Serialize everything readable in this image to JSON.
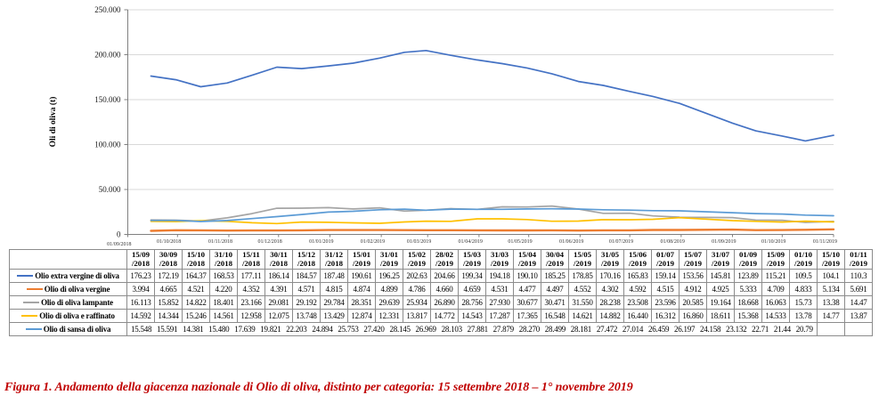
{
  "caption": {
    "text": "Figura 1. Andamento della giacenza nazionale di Olio di oliva, distinto per categoria: 15 settembre 2018 – 1° novembre 2019",
    "color": "#C00000"
  },
  "chart_data": {
    "type": "line",
    "title": "",
    "xlabel": "",
    "ylabel": "Oli di oliva (t)",
    "ylim": [
      0,
      250000
    ],
    "value_scale": 1000,
    "grid": true,
    "legend_position": "table-row-labels",
    "y_ticks": [
      "0",
      "50.000",
      "100.000",
      "150.000",
      "200.000",
      "250.000"
    ],
    "x_range": [
      "01/09/2018",
      "01/11/2019"
    ],
    "x_axis_labels": [
      "01/09/2018",
      "01/10/2018",
      "01/11/2018",
      "01/12/2018",
      "01/01/2019",
      "01/02/2019",
      "01/03/2019",
      "01/04/2019",
      "01/05/2019",
      "01/06/2019",
      "01/07/2019",
      "01/08/2019",
      "01/09/2019",
      "01/10/2019",
      "01/11/2019"
    ],
    "categories": [
      "15/09/2018",
      "30/09/2018",
      "15/10/2018",
      "31/10/2018",
      "15/11/2018",
      "30/11/2018",
      "15/12/2018",
      "31/12/2018",
      "15/01/2019",
      "31/01/2019",
      "15/02/2019",
      "28/02/2019",
      "15/03/2019",
      "31/03/2019",
      "15/04/2019",
      "30/04/2019",
      "15/05/2019",
      "31/05/2019",
      "15/06/2019",
      "01/07/2019",
      "15/07/2019",
      "31/07/2019",
      "01/09/2019",
      "15/09/2019",
      "01/10/2019",
      "15/10/2019",
      "01/11/2019"
    ],
    "series": [
      {
        "name": "Olio extra vergine di oliva",
        "color": "#4472C4",
        "values": [
          "176.23",
          "172.19",
          "164.37",
          "168.53",
          "177.11",
          "186.14",
          "184.57",
          "187.48",
          "190.61",
          "196.25",
          "202.63",
          "204.66",
          "199.34",
          "194.18",
          "190.10",
          "185.25",
          "178.85",
          "170.16",
          "165.83",
          "159.14",
          "153.56",
          "145.81",
          "123.89",
          "115.21",
          "109.5",
          "104.1",
          "110.3"
        ]
      },
      {
        "name": "Olio di oliva vergine",
        "color": "#ED7D31",
        "values": [
          "3.994",
          "4.665",
          "4.521",
          "4.220",
          "4.352",
          "4.391",
          "4.571",
          "4.815",
          "4.874",
          "4.899",
          "4.786",
          "4.660",
          "4.659",
          "4.531",
          "4.477",
          "4.497",
          "4.552",
          "4.302",
          "4.592",
          "4.515",
          "4.912",
          "4.925",
          "5.333",
          "4.709",
          "4.833",
          "5.134",
          "5.691"
        ]
      },
      {
        "name": "Olio di oliva lampante",
        "color": "#A5A5A5",
        "values": [
          "16.113",
          "15.852",
          "14.822",
          "18.401",
          "23.166",
          "29.081",
          "29.192",
          "29.784",
          "28.351",
          "29.639",
          "25.934",
          "26.890",
          "28.756",
          "27.930",
          "30.677",
          "30.471",
          "31.550",
          "28.238",
          "23.508",
          "23.596",
          "20.585",
          "19.164",
          "18.668",
          "16.063",
          "15.73",
          "13.38",
          "14.47"
        ]
      },
      {
        "name": "Olio di oliva e raffinato",
        "color": "#FFC000",
        "values": [
          "14.592",
          "14.344",
          "15.246",
          "14.561",
          "12.958",
          "12.075",
          "13.748",
          "13.429",
          "12.874",
          "12.331",
          "13.817",
          "14.772",
          "14.543",
          "17.287",
          "17.365",
          "16.548",
          "14.621",
          "14.882",
          "16.440",
          "16.312",
          "16.860",
          "18.611",
          "15.368",
          "14.533",
          "13.78",
          "14.77",
          "13.87"
        ]
      },
      {
        "name": "Olio di sansa di oliva",
        "color": "#5B9BD5",
        "values": [
          "15.548",
          "15.591",
          "14.381",
          "15.480",
          "17.639",
          "19.821",
          "22.203",
          "24.894",
          "25.753",
          "27.420",
          "28.145",
          "26.969",
          "28.103",
          "27.881",
          "27.879",
          "28.270",
          "28.499",
          "28.181",
          "27.472",
          "27.014",
          "26.459",
          "26.197",
          "24.158",
          "23.132",
          "22.71",
          "21.44",
          "20.79"
        ]
      }
    ]
  }
}
